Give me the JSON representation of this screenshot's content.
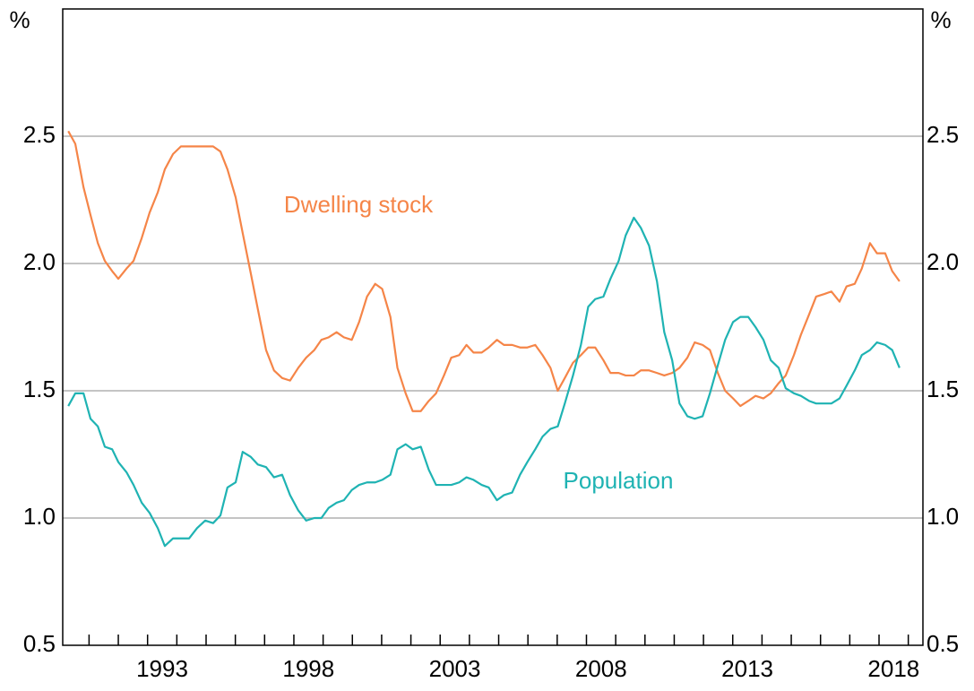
{
  "chart_data": {
    "type": "line",
    "y_unit": "%",
    "xlim": [
      1989.6,
      2019.0
    ],
    "xticks": [
      1993,
      1998,
      2003,
      2008,
      2013,
      2018
    ],
    "ylim": [
      0.5,
      3.0
    ],
    "yticks": [
      0.5,
      {
        "value": 1,
        "label": "1.0"
      },
      1.5,
      {
        "value": 2,
        "label": "2.0"
      },
      2.5
    ],
    "grid": true,
    "x": [
      1989.79,
      1990.03,
      1990.31,
      1990.55,
      1990.8,
      1991.04,
      1991.29,
      1991.5,
      1991.78,
      1992.02,
      1992.3,
      1992.57,
      1992.85,
      1993.09,
      1993.37,
      1993.64,
      1993.92,
      1994.19,
      1994.47,
      1994.74,
      1994.99,
      1995.23,
      1995.51,
      1995.75,
      1996.03,
      1996.27,
      1996.55,
      1996.82,
      1997.1,
      1997.37,
      1997.65,
      1997.92,
      1998.2,
      1998.44,
      1998.69,
      1998.96,
      1999.21,
      1999.48,
      1999.73,
      2000.0,
      2000.28,
      2000.52,
      2000.8,
      2001.04,
      2001.32,
      2001.56,
      2001.84,
      2002.11,
      2002.36,
      2002.63,
      2002.88,
      2003.15,
      2003.4,
      2003.64,
      2003.92,
      2004.16,
      2004.44,
      2004.68,
      2004.96,
      2005.23,
      2005.48,
      2005.75,
      2006.0,
      2006.27,
      2006.52,
      2006.76,
      2007.04,
      2007.31,
      2007.56,
      2007.8,
      2008.08,
      2008.32,
      2008.6,
      2008.84,
      2009.12,
      2009.36,
      2009.64,
      2009.91,
      2010.16,
      2010.43,
      2010.68,
      2010.95,
      2011.2,
      2011.47,
      2011.72,
      2011.99,
      2012.24,
      2012.51,
      2012.76,
      2013.03,
      2013.28,
      2013.55,
      2013.8,
      2014.07,
      2014.31,
      2014.59,
      2014.83,
      2015.11,
      2015.35,
      2015.63,
      2015.87,
      2016.15,
      2016.39,
      2016.67,
      2016.91,
      2017.19,
      2017.43,
      2017.71,
      2017.95,
      2018.2
    ],
    "series": [
      {
        "name": "Dwelling stock",
        "color": "#f58548",
        "values": [
          2.52,
          2.47,
          2.3,
          2.19,
          2.08,
          2.01,
          1.97,
          1.94,
          1.98,
          2.01,
          2.1,
          2.2,
          2.28,
          2.37,
          2.43,
          2.46,
          2.46,
          2.46,
          2.46,
          2.46,
          2.44,
          2.37,
          2.26,
          2.12,
          1.96,
          1.82,
          1.66,
          1.58,
          1.55,
          1.54,
          1.59,
          1.63,
          1.66,
          1.7,
          1.71,
          1.73,
          1.71,
          1.7,
          1.77,
          1.87,
          1.92,
          1.9,
          1.79,
          1.59,
          1.49,
          1.42,
          1.42,
          1.46,
          1.49,
          1.56,
          1.63,
          1.64,
          1.68,
          1.65,
          1.65,
          1.67,
          1.7,
          1.68,
          1.68,
          1.67,
          1.67,
          1.68,
          1.64,
          1.59,
          1.5,
          1.55,
          1.61,
          1.64,
          1.67,
          1.67,
          1.62,
          1.57,
          1.57,
          1.56,
          1.56,
          1.58,
          1.58,
          1.57,
          1.56,
          1.57,
          1.59,
          1.63,
          1.69,
          1.68,
          1.66,
          1.57,
          1.5,
          1.47,
          1.44,
          1.46,
          1.48,
          1.47,
          1.49,
          1.53,
          1.56,
          1.64,
          1.72,
          1.8,
          1.87,
          1.88,
          1.89,
          1.85,
          1.91,
          1.92,
          1.98,
          2.08,
          2.04,
          2.04,
          1.97,
          1.93
        ]
      },
      {
        "name": "Population",
        "color": "#1fb3b3",
        "values": [
          1.44,
          1.49,
          1.49,
          1.39,
          1.36,
          1.28,
          1.27,
          1.22,
          1.18,
          1.13,
          1.06,
          1.02,
          0.96,
          0.89,
          0.92,
          0.92,
          0.92,
          0.96,
          0.99,
          0.98,
          1.01,
          1.12,
          1.14,
          1.26,
          1.24,
          1.21,
          1.2,
          1.16,
          1.17,
          1.09,
          1.03,
          0.99,
          1.0,
          1.0,
          1.04,
          1.06,
          1.07,
          1.11,
          1.13,
          1.14,
          1.14,
          1.15,
          1.17,
          1.27,
          1.29,
          1.27,
          1.28,
          1.19,
          1.13,
          1.13,
          1.13,
          1.14,
          1.16,
          1.15,
          1.13,
          1.12,
          1.07,
          1.09,
          1.1,
          1.17,
          1.22,
          1.27,
          1.32,
          1.35,
          1.36,
          1.45,
          1.56,
          1.68,
          1.83,
          1.86,
          1.87,
          1.94,
          2.01,
          2.11,
          2.18,
          2.14,
          2.07,
          1.93,
          1.73,
          1.62,
          1.45,
          1.4,
          1.39,
          1.4,
          1.49,
          1.6,
          1.7,
          1.77,
          1.79,
          1.79,
          1.75,
          1.7,
          1.62,
          1.59,
          1.51,
          1.49,
          1.48,
          1.46,
          1.45,
          1.45,
          1.45,
          1.47,
          1.52,
          1.58,
          1.64,
          1.66,
          1.69,
          1.68,
          1.66,
          1.59
        ]
      }
    ]
  }
}
